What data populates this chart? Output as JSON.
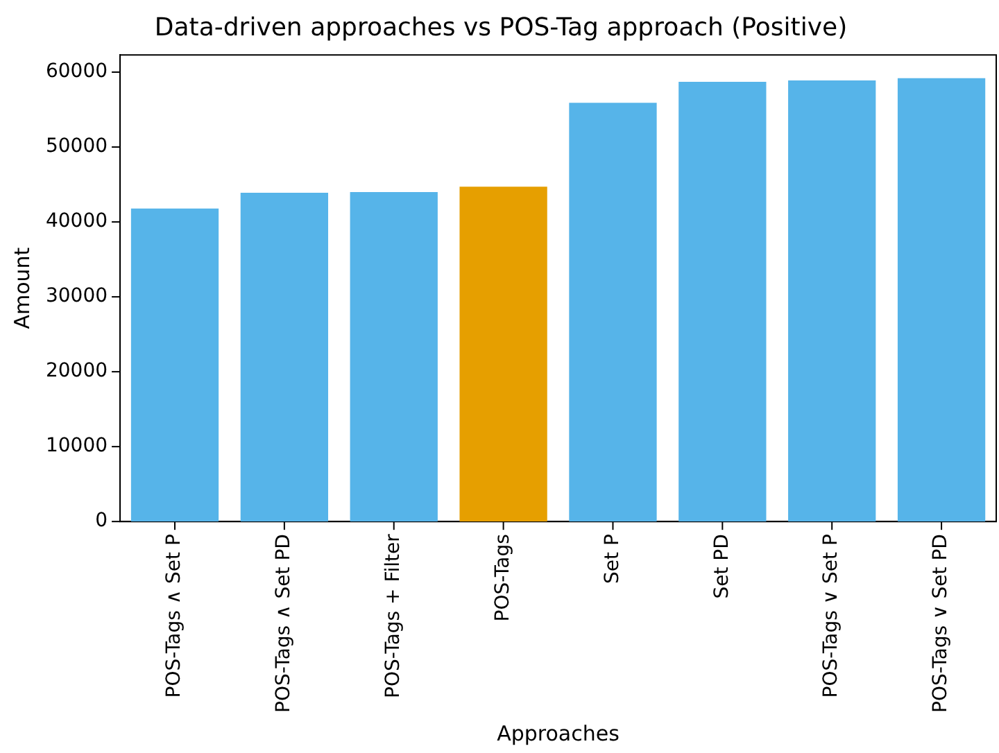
{
  "chart_data": {
    "type": "bar",
    "title": "Data-driven approaches vs POS-Tag approach (Positive)",
    "xlabel": "Approaches",
    "ylabel": "Amount",
    "categories": [
      "POS-Tags ∧ Set P",
      "POS-Tags ∧ Set PD",
      "POS-Tags + Filter",
      "POS-Tags",
      "Set P",
      "Set PD",
      "POS-Tags ∨ Set P",
      "POS-Tags ∨ Set PD"
    ],
    "values": [
      41800,
      43900,
      44000,
      44700,
      55900,
      58700,
      58900,
      59200
    ],
    "colors": [
      "#56b4e9",
      "#56b4e9",
      "#56b4e9",
      "#e69f00",
      "#56b4e9",
      "#56b4e9",
      "#56b4e9",
      "#56b4e9"
    ],
    "ylim": [
      0,
      62300
    ],
    "yticks": [
      0,
      10000,
      20000,
      30000,
      40000,
      50000,
      60000
    ],
    "grid": false
  }
}
